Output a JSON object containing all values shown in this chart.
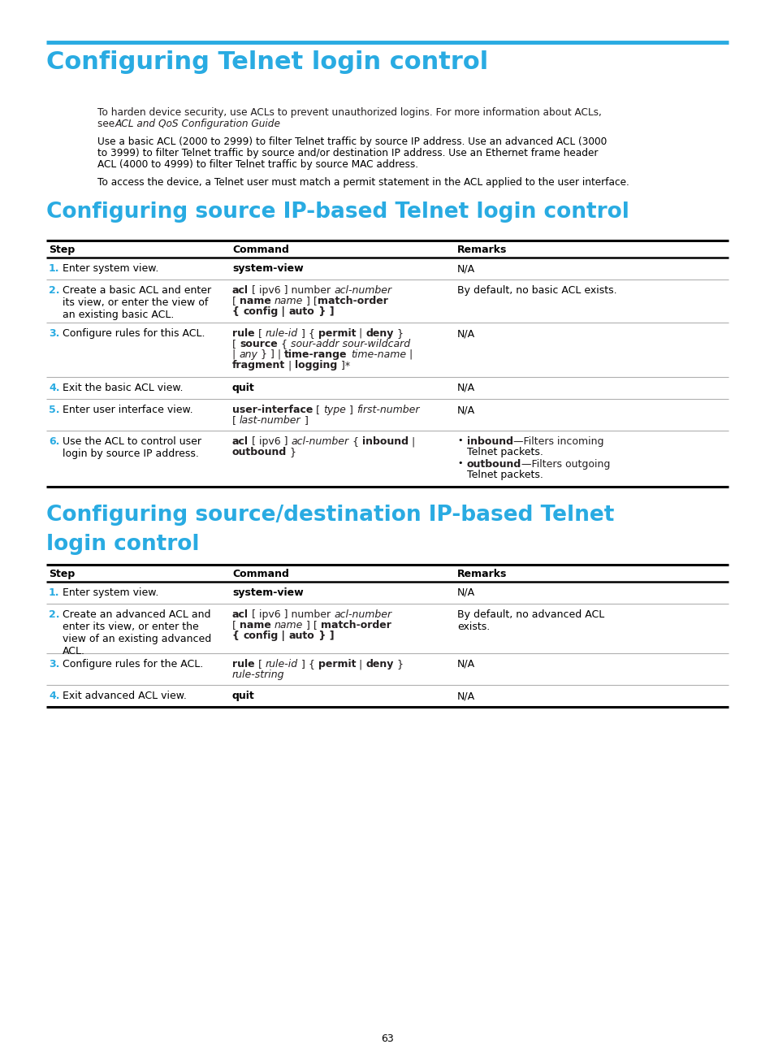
{
  "bg_color": "#ffffff",
  "cyan_color": "#29abe2",
  "text_color": "#231f20",
  "page_title": "Configuring Telnet login control",
  "section1_title": "Configuring source IP-based Telnet login control",
  "section2_title_line1": "Configuring source/destination IP-based Telnet",
  "section2_title_line2": "login control",
  "page_num": "63"
}
